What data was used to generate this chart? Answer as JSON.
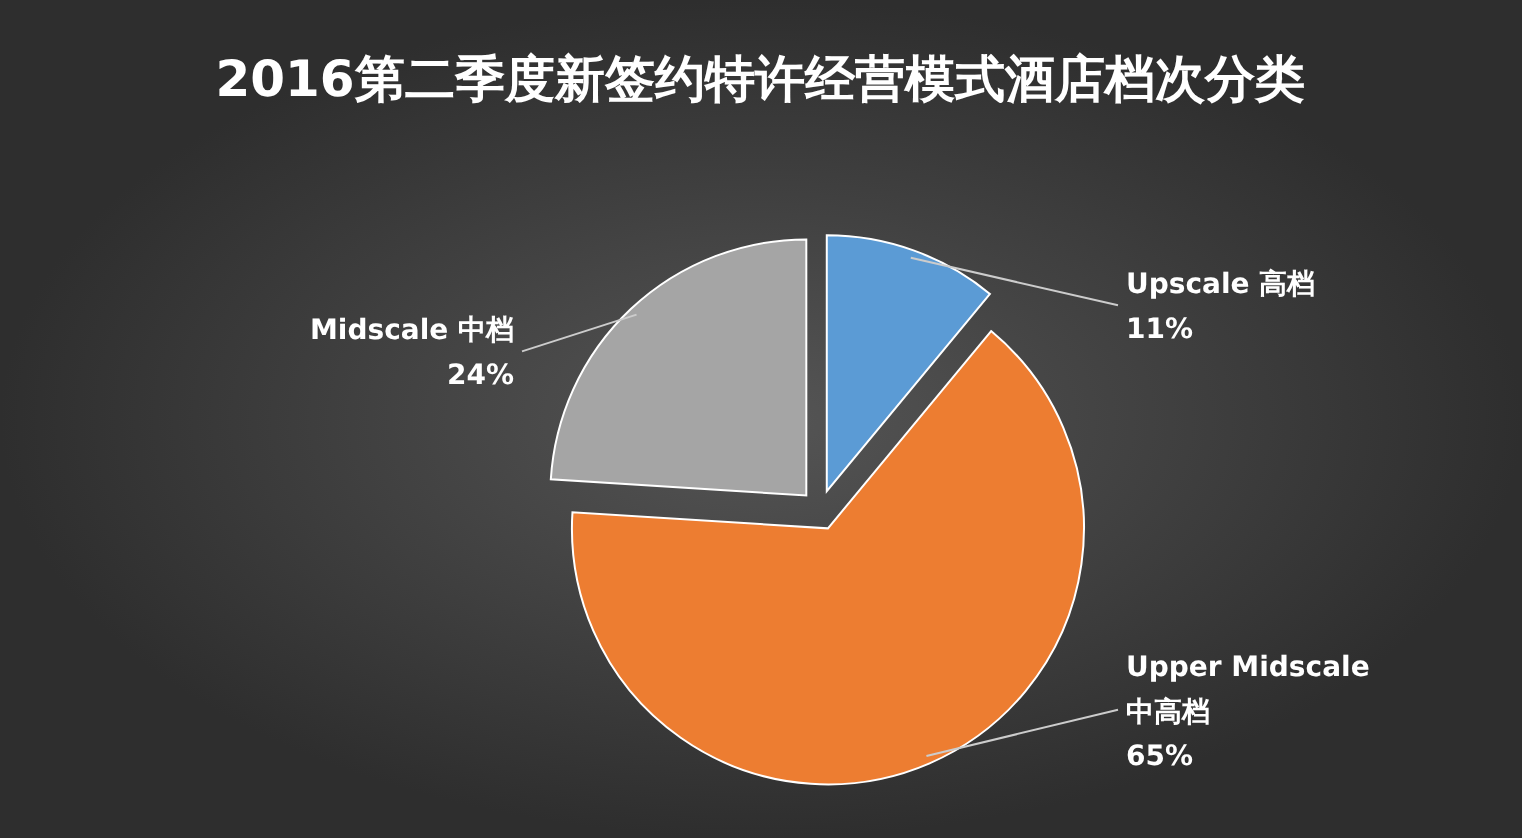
{
  "chart_data": {
    "type": "pie",
    "title": "2016第二季度新签约特许经营模式酒店档次分类",
    "categories": [
      "Upscale 高档",
      "Upper Midscale 中高档",
      "Midscale 中档"
    ],
    "values": [
      11,
      65,
      24
    ],
    "colors": [
      "#5b9bd5",
      "#ed7d31",
      "#a5a5a5"
    ],
    "value_labels": [
      "11%",
      "65%",
      "24%"
    ]
  }
}
